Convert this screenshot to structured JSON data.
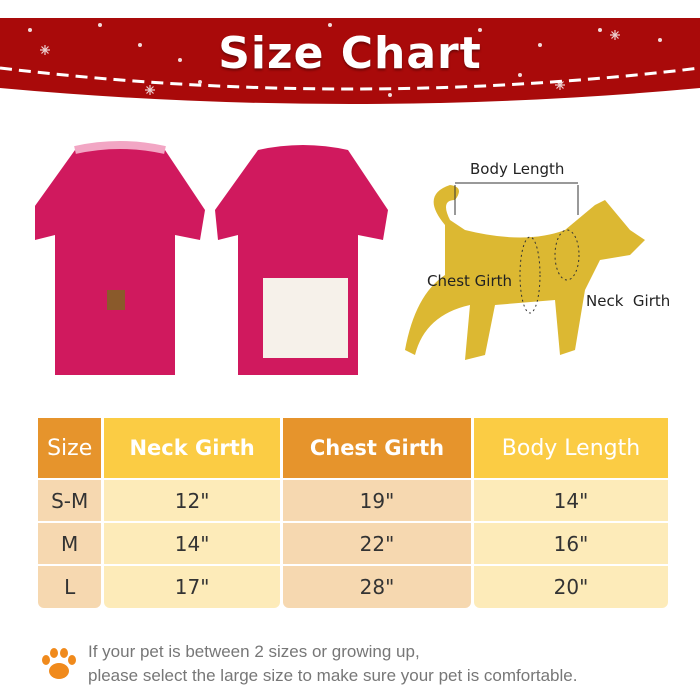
{
  "title": "Size Chart",
  "colors": {
    "banner": "#a90a0a",
    "header_orange": "#e6942c",
    "header_yellow": "#fbcc44",
    "cell_orange": "#f6d8b0",
    "cell_yellow": "#fdebb9",
    "sweater": "#d0195e",
    "dog": "#dcb832"
  },
  "diagram": {
    "body_length": "Body Length",
    "chest_girth": "Chest Girth",
    "neck_girth": "Neck  Girth"
  },
  "table": {
    "headers": [
      "Size",
      "Neck Girth",
      "Chest Girth",
      "Body Length"
    ],
    "rows": [
      [
        "S-M",
        "12\"",
        "19\"",
        "14\""
      ],
      [
        "M",
        "14\"",
        "22\"",
        "16\""
      ],
      [
        "L",
        "17\"",
        "28\"",
        "20\""
      ]
    ]
  },
  "footer": {
    "icon": "paw-icon",
    "line1": "If your pet is between 2 sizes or growing up,",
    "line2": "please select the large size to make sure your pet is comfortable."
  }
}
